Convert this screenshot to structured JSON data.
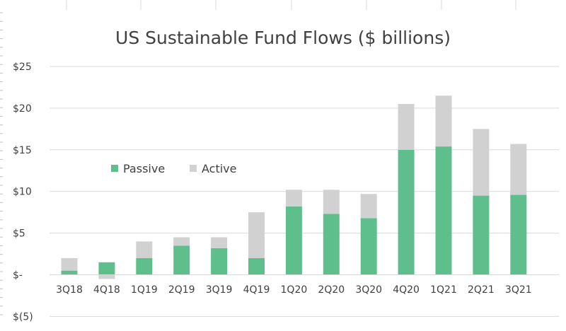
{
  "chart_data": {
    "type": "bar",
    "stacked": true,
    "title": "US Sustainable Fund Flows ($ billions)",
    "xlabel": "",
    "ylabel": "",
    "categories": [
      "3Q18",
      "4Q18",
      "1Q19",
      "2Q19",
      "3Q19",
      "4Q19",
      "1Q20",
      "2Q20",
      "3Q20",
      "4Q20",
      "1Q21",
      "2Q21",
      "3Q21"
    ],
    "series": [
      {
        "name": "Passive",
        "color": "#5fbf8c",
        "values": [
          0.5,
          1.5,
          2.0,
          3.5,
          3.2,
          2.0,
          8.2,
          7.3,
          6.8,
          15.0,
          15.4,
          9.5,
          9.6
        ]
      },
      {
        "name": "Active",
        "color": "#d1d1d1",
        "values": [
          1.5,
          -0.5,
          2.0,
          1.0,
          1.3,
          5.5,
          2.0,
          2.9,
          2.9,
          5.5,
          6.1,
          8.0,
          6.1
        ]
      }
    ],
    "ylim": [
      -5,
      25
    ],
    "yticks": [
      25,
      20,
      15,
      10,
      5,
      0,
      -5
    ],
    "ytick_labels": [
      "$25",
      "$20",
      "$15",
      "$10",
      "$5",
      "$-",
      "$(5)"
    ],
    "grid": true,
    "legend_position": "inside-left"
  }
}
